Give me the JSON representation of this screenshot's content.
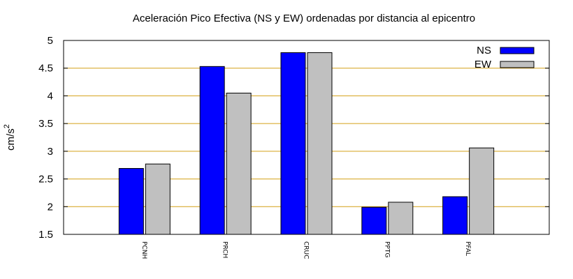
{
  "chart_data": {
    "type": "bar",
    "title": "Aceleración Pico Efectiva (NS y EW) ordenadas por distancia al epicentro",
    "ylabel": "cm/s",
    "ylabel_superscript": "2",
    "xlabel": "",
    "categories": [
      "PCNH",
      "PRCH",
      "CRUC",
      "PPTG",
      "PFAL"
    ],
    "series": [
      {
        "name": "NS",
        "color": "#0000ff",
        "values": [
          2.69,
          4.53,
          4.78,
          1.99,
          2.18
        ]
      },
      {
        "name": "EW",
        "color": "#c0c0c0",
        "values": [
          2.77,
          4.05,
          4.78,
          2.08,
          3.06
        ]
      }
    ],
    "ylim": [
      1.5,
      5
    ],
    "yticks": [
      "1.5",
      "2",
      "2.5",
      "3",
      "3.5",
      "4",
      "4.5",
      "5"
    ],
    "grid": true,
    "grid_color": "#d4a017",
    "legend_position": "top-right"
  }
}
